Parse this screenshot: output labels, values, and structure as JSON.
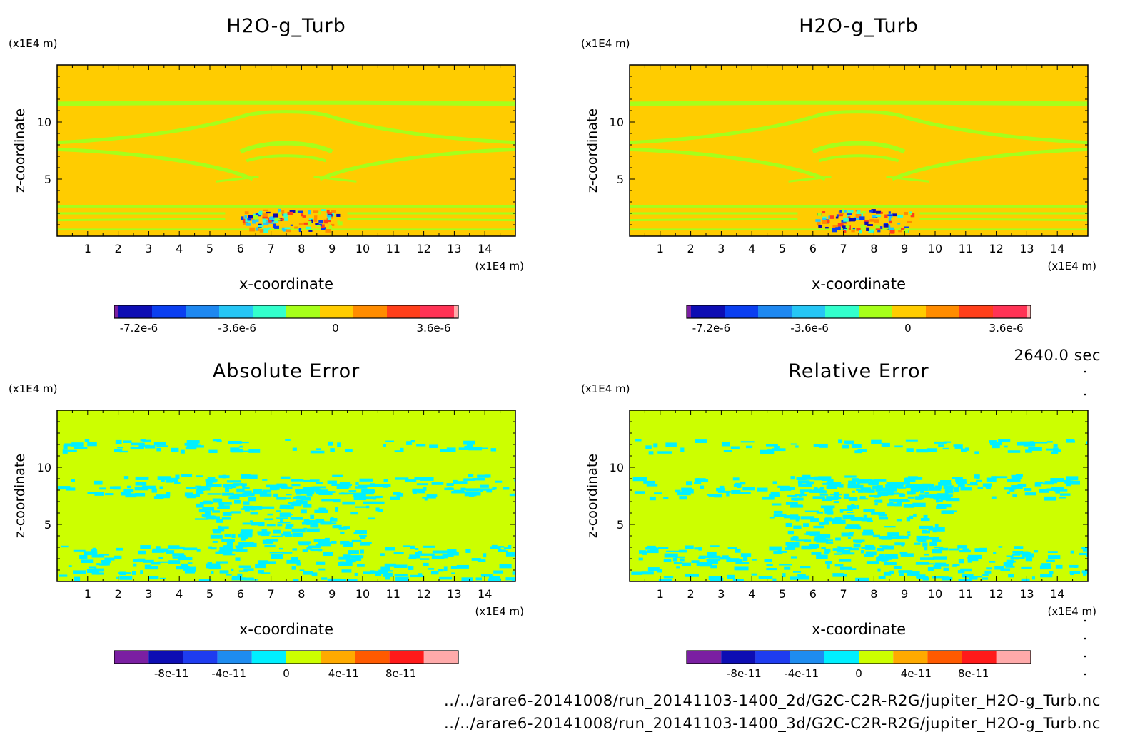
{
  "chart_data": [
    {
      "type": "heatmap",
      "title": "H2O-g_Turb",
      "xlabel": "x-coordinate",
      "ylabel": "z-coordinate",
      "xunit": "(x1E4 m)",
      "yunit": "(x1E4 m)",
      "xlim": [
        0,
        15
      ],
      "ylim": [
        0,
        15
      ],
      "xticks": [
        "1",
        "2",
        "3",
        "4",
        "5",
        "6",
        "7",
        "8",
        "9",
        "10",
        "11",
        "12",
        "13",
        "14"
      ],
      "yticks": [
        "5",
        "10"
      ],
      "colorbar": {
        "tick_labels": [
          "-7.2e-6",
          "-3.6e-6",
          "0",
          "3.6e-6"
        ],
        "tick_values": [
          -7.2e-06,
          -3.6e-06,
          0,
          3.6e-06
        ],
        "range": [
          -8.1e-06,
          4.5e-06
        ],
        "colors": [
          "#7b1fa2",
          "#0d0db3",
          "#0b3ff0",
          "#1e88f0",
          "#26c6f5",
          "#33ffcc",
          "#a6ff1a",
          "#ffcc00",
          "#ff8c00",
          "#ff3f1a",
          "#ff3355",
          "#ffaaaa"
        ]
      },
      "background_value": 0.0
    },
    {
      "type": "heatmap",
      "title": "H2O-g_Turb",
      "xlabel": "x-coordinate",
      "ylabel": "z-coordinate",
      "xunit": "(x1E4 m)",
      "yunit": "(x1E4 m)",
      "xlim": [
        0,
        15
      ],
      "ylim": [
        0,
        15
      ],
      "xticks": [
        "1",
        "2",
        "3",
        "4",
        "5",
        "6",
        "7",
        "8",
        "9",
        "10",
        "11",
        "12",
        "13",
        "14"
      ],
      "yticks": [
        "5",
        "10"
      ],
      "colorbar": {
        "tick_labels": [
          "-7.2e-6",
          "-3.6e-6",
          "0",
          "3.6e-6"
        ],
        "tick_values": [
          -7.2e-06,
          -3.6e-06,
          0,
          3.6e-06
        ],
        "range": [
          -8.1e-06,
          4.5e-06
        ],
        "colors": [
          "#7b1fa2",
          "#0d0db3",
          "#0b3ff0",
          "#1e88f0",
          "#26c6f5",
          "#33ffcc",
          "#a6ff1a",
          "#ffcc00",
          "#ff8c00",
          "#ff3f1a",
          "#ff3355",
          "#ffaaaa"
        ]
      },
      "background_value": 0.0
    },
    {
      "type": "heatmap",
      "title": "Absolute Error",
      "xlabel": "x-coordinate",
      "ylabel": "z-coordinate",
      "xunit": "(x1E4 m)",
      "yunit": "(x1E4 m)",
      "xlim": [
        0,
        15
      ],
      "ylim": [
        0,
        15
      ],
      "xticks": [
        "1",
        "2",
        "3",
        "4",
        "5",
        "6",
        "7",
        "8",
        "9",
        "10",
        "11",
        "12",
        "13",
        "14"
      ],
      "yticks": [
        "5",
        "10"
      ],
      "colorbar": {
        "tick_labels": [
          "-8e-11",
          "-4e-11",
          "0",
          "4e-11",
          "8e-11"
        ],
        "tick_values": [
          -8e-11,
          -4e-11,
          0,
          4e-11,
          8e-11
        ],
        "range": [
          -1.2e-10,
          1.2e-10
        ],
        "colors": [
          "#7b1fa2",
          "#0d0db3",
          "#1e3cf0",
          "#1e8cf0",
          "#00f0ff",
          "#ccff00",
          "#ffaa00",
          "#ff5a00",
          "#ff1a1a",
          "#ffaaaa"
        ]
      },
      "background_value": 0.0
    },
    {
      "type": "heatmap",
      "title": "Relative Error",
      "xlabel": "x-coordinate",
      "ylabel": "z-coordinate",
      "xunit": "(x1E4 m)",
      "yunit": "(x1E4 m)",
      "xlim": [
        0,
        15
      ],
      "ylim": [
        0,
        15
      ],
      "xticks": [
        "1",
        "2",
        "3",
        "4",
        "5",
        "6",
        "7",
        "8",
        "9",
        "10",
        "11",
        "12",
        "13",
        "14"
      ],
      "yticks": [
        "5",
        "10"
      ],
      "colorbar": {
        "tick_labels": [
          "-8e-11",
          "-4e-11",
          "0",
          "4e-11",
          "8e-11"
        ],
        "tick_values": [
          -8e-11,
          -4e-11,
          0,
          4e-11,
          8e-11
        ],
        "range": [
          -1.2e-10,
          1.2e-10
        ],
        "colors": [
          "#7b1fa2",
          "#0d0db3",
          "#1e3cf0",
          "#1e8cf0",
          "#00f0ff",
          "#ccff00",
          "#ffaa00",
          "#ff5a00",
          "#ff1a1a",
          "#ffaaaa"
        ]
      },
      "background_value": 0.0
    }
  ],
  "time_label": "2640.0 sec",
  "file_paths": [
    "../../arare6-20141008/run_20141103-1400_2d/G2C-C2R-R2G/jupiter_H2O-g_Turb.nc",
    "../../arare6-20141008/run_20141103-1400_3d/G2C-C2R-R2G/jupiter_H2O-g_Turb.nc"
  ]
}
